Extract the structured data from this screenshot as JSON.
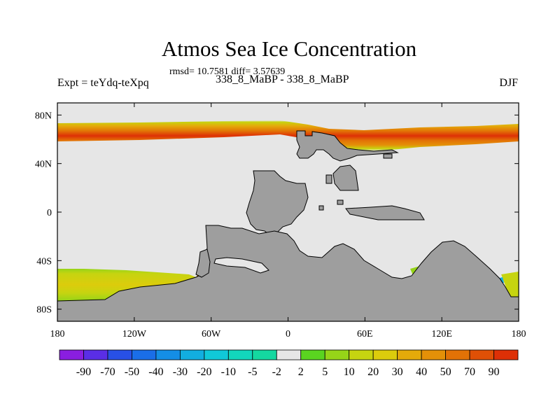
{
  "chart_data": {
    "type": "heatmap",
    "title": "Atmos Sea Ice Concentration",
    "subtitle": "rmsd= 10.7581 diff= 3.57639",
    "experiment_label": "Expt = teYdq-teXpq",
    "comparison_label": "338_8_MaBP - 338_8_MaBP",
    "season": "DJF",
    "x_ticks": [
      "180",
      "120W",
      "60W",
      "0",
      "60E",
      "120E",
      "180"
    ],
    "y_ticks": [
      "80N",
      "40N",
      "0",
      "40S",
      "80S"
    ],
    "xlim": [
      -180,
      180
    ],
    "ylim": [
      -90,
      90
    ],
    "colorbar": {
      "labels": [
        "-90",
        "-70",
        "-50",
        "-40",
        "-30",
        "-20",
        "-10",
        "-5",
        "-2",
        "2",
        "5",
        "10",
        "20",
        "30",
        "40",
        "50",
        "70",
        "90"
      ],
      "colors": [
        "#8a1ee0",
        "#5a2ee6",
        "#2850e6",
        "#1a6ee8",
        "#148ee6",
        "#12aee0",
        "#10c8d8",
        "#12d6bc",
        "#14d8a0",
        "#e6e6e6",
        "#5ad420",
        "#96d418",
        "#c6d410",
        "#dccc0c",
        "#e4aa0a",
        "#e49008",
        "#e27206",
        "#e05006",
        "#de3006"
      ]
    },
    "colors": {
      "land": "#9e9e9e",
      "zero_diff": "#e6e6e6"
    }
  }
}
